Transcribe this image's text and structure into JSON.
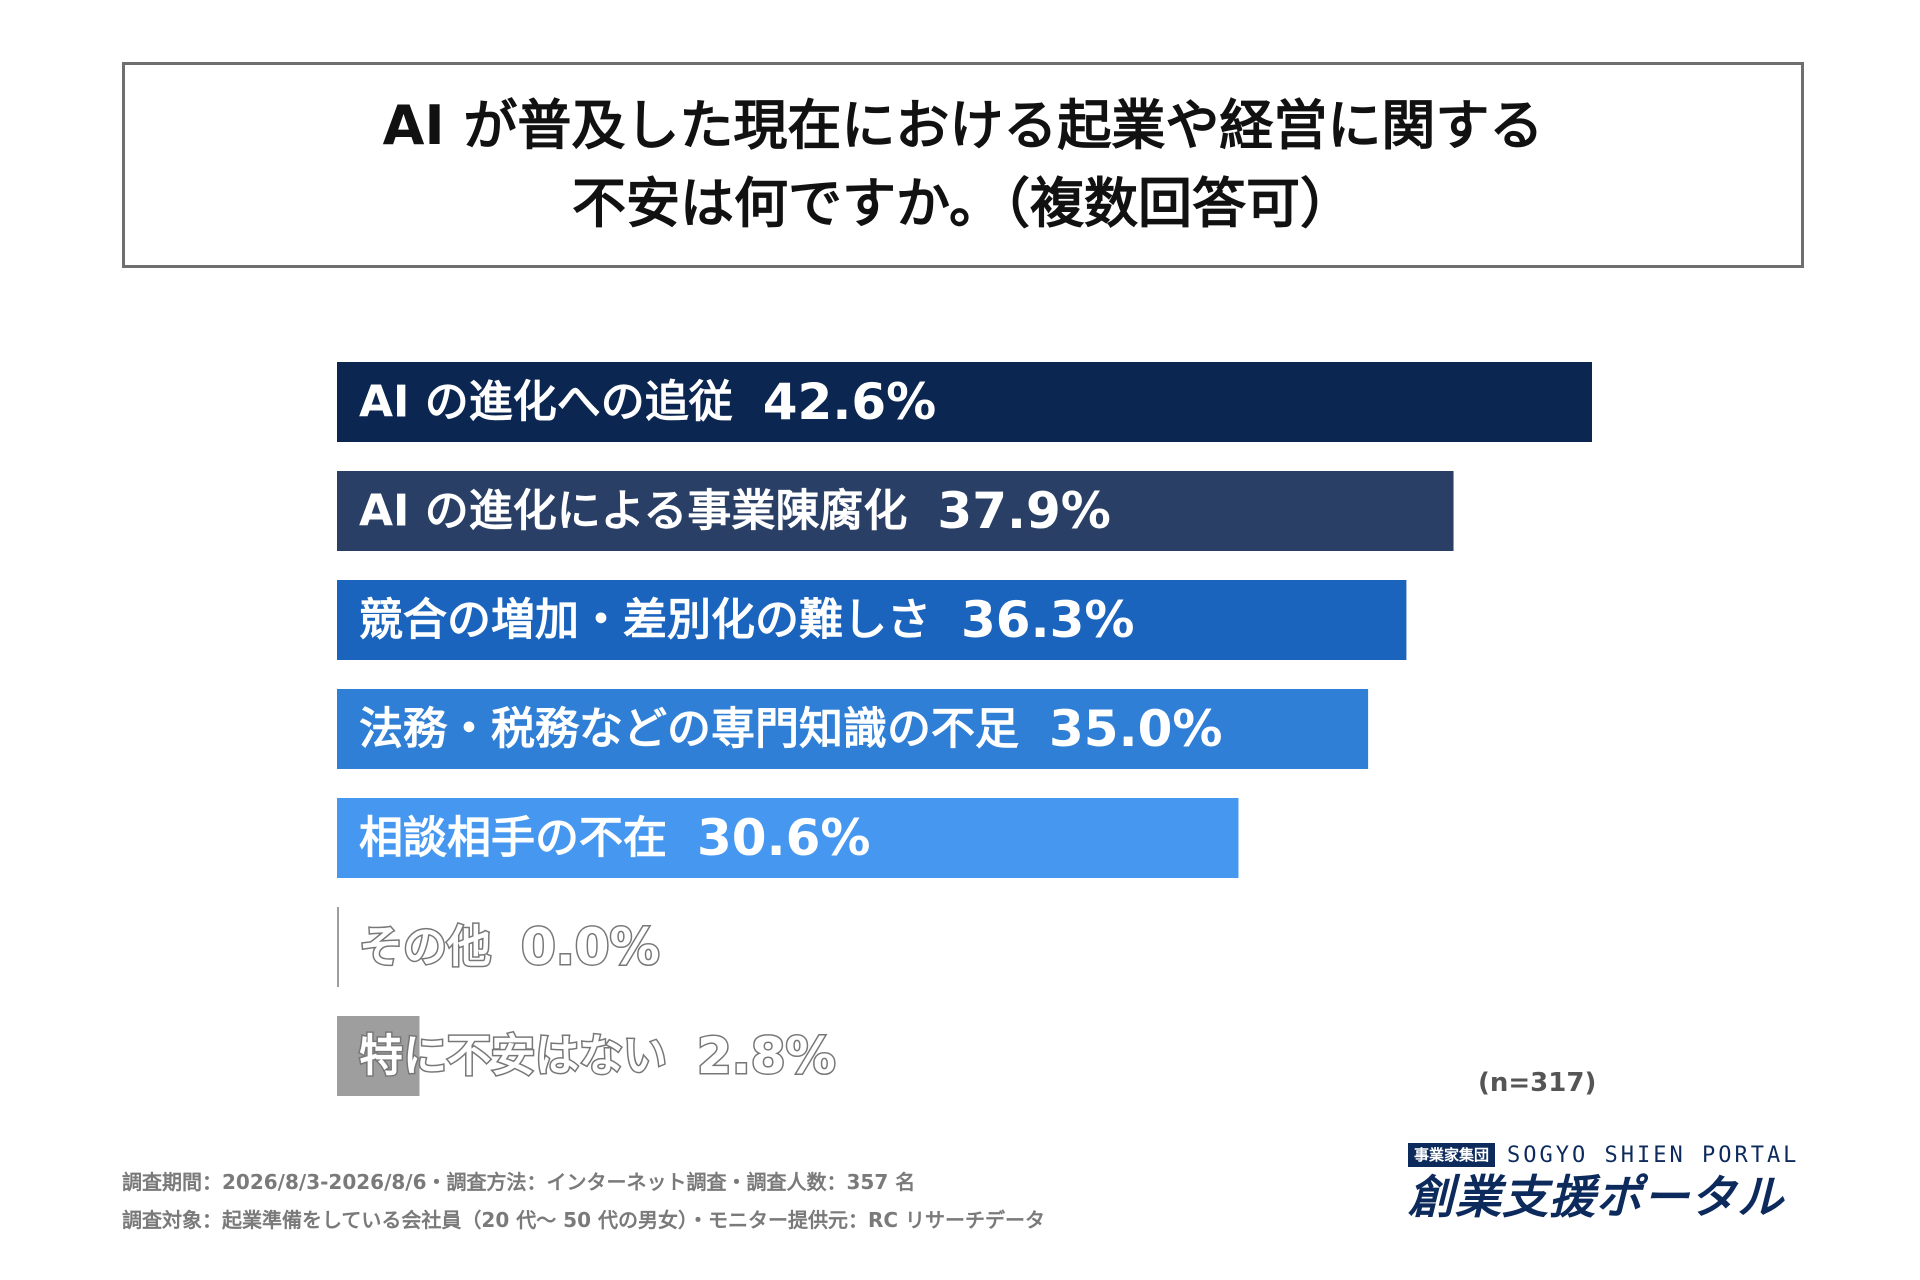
{
  "title": {
    "line1": "AI が普及した現在における起業や経営に関する",
    "line2": "不安は何ですか。（複数回答可）"
  },
  "chart_data": {
    "type": "bar",
    "orientation": "horizontal",
    "unit": "%",
    "categories": [
      "AI の進化への追従",
      "AI の進化による事業陳腐化",
      "競合の増加・差別化の難しさ",
      "法務・税務などの専門知識の不足",
      "相談相手の不在",
      "その他",
      "特に不安はない"
    ],
    "values": [
      42.6,
      37.9,
      36.3,
      35.0,
      30.6,
      0.0,
      2.8
    ],
    "value_labels": [
      "42.6%",
      "37.9%",
      "36.3%",
      "35.0%",
      "30.6%",
      "0.0%",
      "2.8%"
    ],
    "colors": [
      "#0b2650",
      "#2a3f66",
      "#1a64bd",
      "#2f7fd6",
      "#4597f0",
      "#9e9e9e",
      "#9e9e9e"
    ],
    "xlim": [
      0,
      42.6
    ],
    "grid": false,
    "legend": "none"
  },
  "sample_note": "(n=317)",
  "footer": {
    "line1": "調査期間：2026/8/3-2026/8/6・調査方法：インターネット調査・調査人数：357 名",
    "line2": "調査対象：起業準備をしている会社員（20 代〜 50 代の男女）・モニター提供元：RC リサーチデータ"
  },
  "logo": {
    "group_label": "事業家集団",
    "english": "SOGYO SHIEN PORTAL",
    "japanese": "創業支援ポータル"
  },
  "colors": {
    "label_on_bar": "#ffffff",
    "label_outline": "#777777",
    "title_border": "#6f6f6f",
    "brand": "#0d2a5c"
  }
}
